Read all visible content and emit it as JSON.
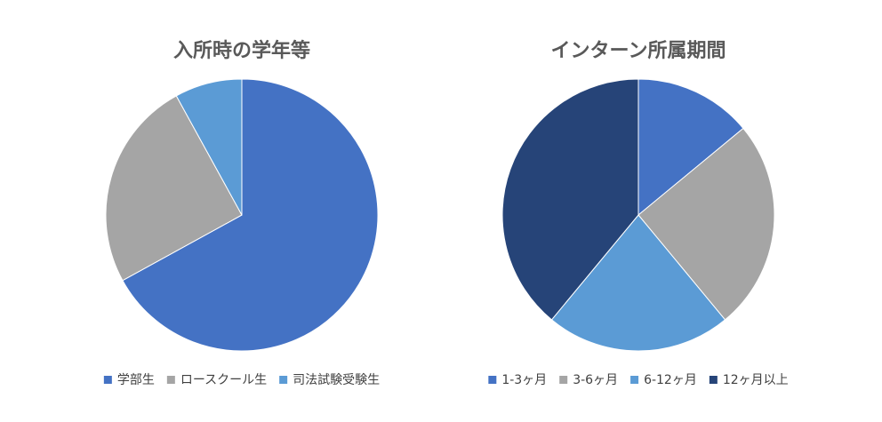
{
  "chart_data": [
    {
      "type": "pie",
      "title": "入所時の学年等",
      "categories": [
        "学部生",
        "ロースクール生",
        "司法試験受験生"
      ],
      "values": [
        67,
        25,
        8
      ],
      "colors": [
        "#4472c4",
        "#a5a5a5",
        "#5b9bd5"
      ]
    },
    {
      "type": "pie",
      "title": "インターン所属期間",
      "categories": [
        "1-3ヶ月",
        "3-6ヶ月",
        "6-12ヶ月",
        "12ヶ月以上"
      ],
      "values": [
        14,
        25,
        22,
        39
      ],
      "colors": [
        "#4472c4",
        "#a5a5a5",
        "#5b9bd5",
        "#264478"
      ]
    }
  ]
}
